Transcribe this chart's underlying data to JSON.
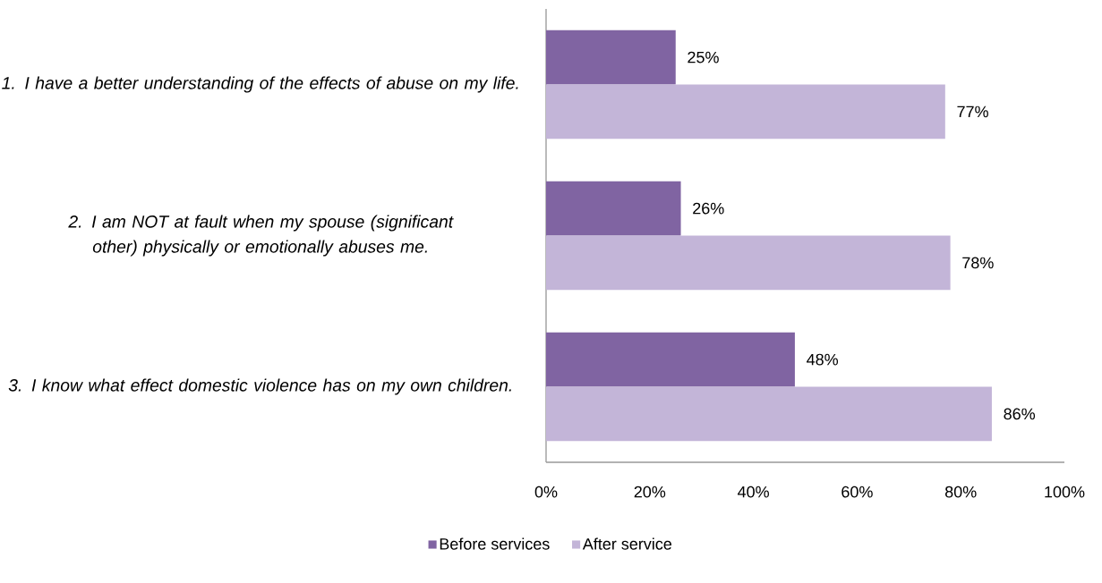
{
  "chart_data": {
    "type": "bar",
    "orientation": "horizontal",
    "categories": [
      "1.  I have a better understanding of the effects of abuse on my life.",
      "2.  I am NOT at fault when my spouse (significant other) physically or emotionally abuses me.",
      "3.  I know what effect domestic violence has on my own children."
    ],
    "series": [
      {
        "name": "Before services",
        "color": "#8064a2",
        "values": [
          25,
          26,
          48
        ],
        "value_labels": [
          "25%",
          "26%",
          "48%"
        ]
      },
      {
        "name": "After service",
        "color": "#c3b5d8",
        "values": [
          77,
          78,
          86
        ],
        "value_labels": [
          "77%",
          "78%",
          "86%"
        ]
      }
    ],
    "xlim": [
      0,
      100
    ],
    "xticks": [
      {
        "value": 0,
        "label": "0%"
      },
      {
        "value": 20,
        "label": "20%"
      },
      {
        "value": 40,
        "label": "40%"
      },
      {
        "value": 60,
        "label": "60%"
      },
      {
        "value": 80,
        "label": "80%"
      },
      {
        "value": 100,
        "label": "100%"
      }
    ],
    "legend": "bottom",
    "grid": false
  }
}
